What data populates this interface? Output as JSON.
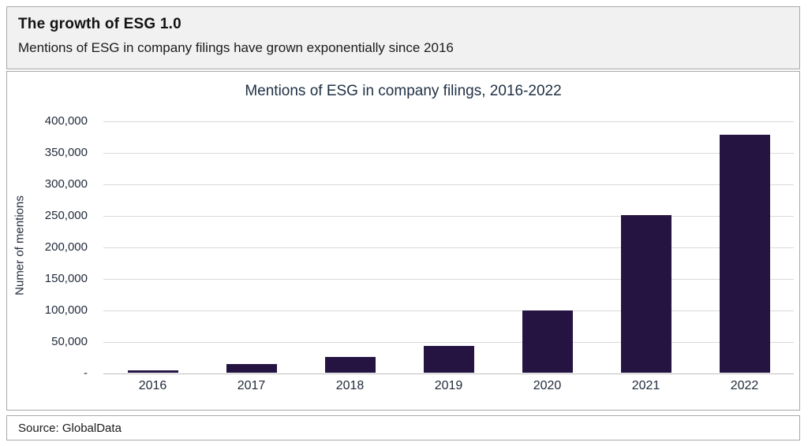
{
  "header": {
    "title": "The growth of ESG 1.0",
    "subtitle": "Mentions of ESG in company filings have grown exponentially since 2016"
  },
  "footer": {
    "source": "Source: GlobalData"
  },
  "colors": {
    "bar": "#251442",
    "gridline": "#d9d9d9",
    "baseline": "#bfbfbf",
    "axis_text": "#222b3c",
    "title_text": "#1f3044",
    "panel_border": "#a9a9a9",
    "header_background": "#f1f1f2"
  },
  "chart_data": {
    "type": "bar",
    "title": "Mentions of ESG in company filings, 2016-2022",
    "xlabel": "",
    "ylabel": "Numer of mentions",
    "categories": [
      "2016",
      "2017",
      "2018",
      "2019",
      "2020",
      "2021",
      "2022"
    ],
    "values": [
      4000,
      14000,
      25000,
      42000,
      99000,
      250000,
      378000
    ],
    "ylim": [
      0,
      400000
    ],
    "ytick_interval": 50000,
    "ytick_labels_top_to_bottom": [
      "400,000",
      "350,000",
      "300,000",
      "250,000",
      "200,000",
      "150,000",
      "100,000",
      "50,000",
      "-"
    ],
    "grid": true,
    "legend": "none",
    "bar_color": "#251442"
  }
}
